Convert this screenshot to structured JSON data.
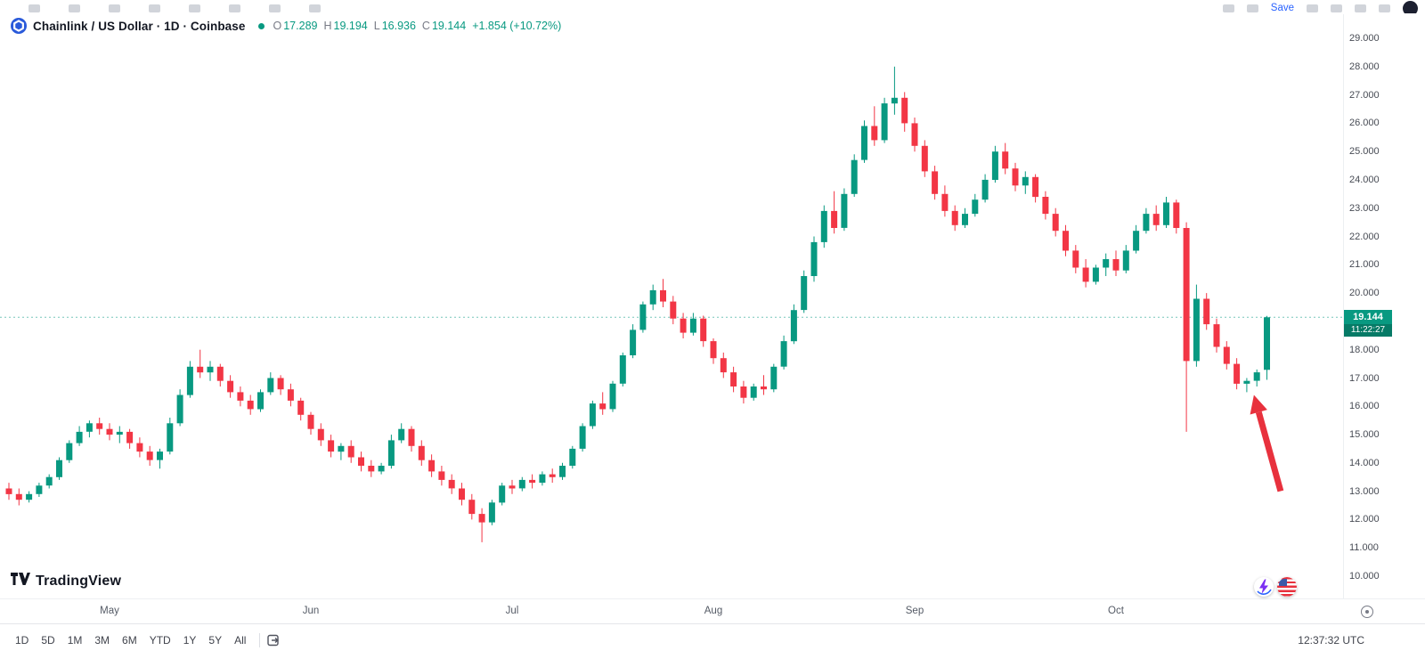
{
  "top_bar": {
    "save_label": "Save",
    "left_icons": [
      "symbol-search-icon",
      "compare-icon",
      "interval-menu-icon",
      "bar-style-icon",
      "indicators-icon",
      "indicator-templates-icon",
      "alerts-icon",
      "replay-icon"
    ],
    "right_icons_a": [
      "undo-icon",
      "redo-icon"
    ],
    "right_icons_b": [
      "multichart-layout-icon",
      "zoom-in-icon",
      "zoom-out-icon",
      "snapshot-camera-icon"
    ]
  },
  "symbol_header": {
    "title": "Chainlink / US Dollar · 1D · Coinbase",
    "ohlc_items": [
      {
        "label": "O",
        "value": "17.289"
      },
      {
        "label": "H",
        "value": "19.194"
      },
      {
        "label": "L",
        "value": "16.936"
      },
      {
        "label": "C",
        "value": "19.144"
      }
    ],
    "change": "+1.854 (+10.72%)"
  },
  "price_scale": {
    "labels": [
      "29.000",
      "28.000",
      "27.000",
      "26.000",
      "25.000",
      "24.000",
      "23.000",
      "22.000",
      "21.000",
      "20.000",
      "19.000",
      "18.000",
      "17.000",
      "16.000",
      "15.000",
      "14.000",
      "13.000",
      "12.000",
      "11.000",
      "10.000"
    ],
    "last_price_label": "19.144",
    "countdown": "11:22:27"
  },
  "toolbar": {
    "ranges": [
      "1D",
      "5D",
      "1M",
      "3M",
      "6M",
      "YTD",
      "1Y",
      "5Y",
      "All"
    ],
    "time_utc": "12:37:32 UTC"
  },
  "watermark": {
    "text": "TradingView"
  },
  "icons": {
    "chainlink-logo": "blue circle with white hexagon",
    "market-status-dot": "teal dot",
    "time-axis-settings": "circled dot",
    "go-to-date": "box with right arrow",
    "lightning-badge": "purple bolt in white circle",
    "us-flag-badge": "red-white striped roundel with blue corner",
    "tradingview-logo": "black TV mark",
    "arrow-annotation": "red arrow pointing up-left"
  },
  "chart_data": {
    "type": "candlestick",
    "title": "Chainlink / US Dollar",
    "interval": "1D",
    "exchange": "Coinbase",
    "ohlc": {
      "open": 17.289,
      "high": 19.194,
      "low": 16.936,
      "close": 19.144,
      "change": 1.854,
      "change_pct": 10.72
    },
    "ylim": [
      10,
      29
    ],
    "y_tick_step": 1,
    "grid": false,
    "last_price": 19.144,
    "countdown": "11:22:27",
    "colors": {
      "up": "#089981",
      "down": "#f23645"
    },
    "months": [
      {
        "label": "May",
        "candle_index": 10
      },
      {
        "label": "Jun",
        "candle_index": 30
      },
      {
        "label": "Jul",
        "candle_index": 50
      },
      {
        "label": "Aug",
        "candle_index": 70
      },
      {
        "label": "Sep",
        "candle_index": 90
      },
      {
        "label": "Oct",
        "candle_index": 110
      }
    ],
    "annotation": {
      "type": "arrow-up-left",
      "color": "#e8313d",
      "tip_index": 123,
      "tip_price": 16.4
    },
    "candles": [
      [
        13.1,
        13.3,
        12.7,
        12.9
      ],
      [
        12.9,
        13.1,
        12.5,
        12.7
      ],
      [
        12.7,
        13.0,
        12.6,
        12.9
      ],
      [
        12.9,
        13.3,
        12.8,
        13.2
      ],
      [
        13.2,
        13.6,
        13.1,
        13.5
      ],
      [
        13.5,
        14.2,
        13.4,
        14.1
      ],
      [
        14.1,
        14.8,
        14.0,
        14.7
      ],
      [
        14.7,
        15.3,
        14.6,
        15.1
      ],
      [
        15.1,
        15.5,
        14.9,
        15.4
      ],
      [
        15.4,
        15.6,
        15.0,
        15.2
      ],
      [
        15.2,
        15.4,
        14.8,
        15.0
      ],
      [
        15.0,
        15.3,
        14.7,
        15.1
      ],
      [
        15.1,
        15.2,
        14.5,
        14.7
      ],
      [
        14.7,
        14.9,
        14.2,
        14.4
      ],
      [
        14.4,
        14.6,
        13.9,
        14.1
      ],
      [
        14.1,
        14.5,
        13.8,
        14.4
      ],
      [
        14.4,
        15.6,
        14.3,
        15.4
      ],
      [
        15.4,
        16.6,
        15.3,
        16.4
      ],
      [
        16.4,
        17.6,
        16.3,
        17.4
      ],
      [
        17.4,
        18.0,
        17.0,
        17.2
      ],
      [
        17.2,
        17.6,
        16.9,
        17.4
      ],
      [
        17.4,
        17.5,
        16.7,
        16.9
      ],
      [
        16.9,
        17.1,
        16.3,
        16.5
      ],
      [
        16.5,
        16.7,
        16.0,
        16.2
      ],
      [
        16.2,
        16.4,
        15.7,
        15.9
      ],
      [
        15.9,
        16.6,
        15.8,
        16.5
      ],
      [
        16.5,
        17.2,
        16.4,
        17.0
      ],
      [
        17.0,
        17.1,
        16.4,
        16.6
      ],
      [
        16.6,
        16.8,
        16.0,
        16.2
      ],
      [
        16.2,
        16.3,
        15.5,
        15.7
      ],
      [
        15.7,
        15.8,
        15.0,
        15.2
      ],
      [
        15.2,
        15.4,
        14.6,
        14.8
      ],
      [
        14.8,
        15.0,
        14.2,
        14.4
      ],
      [
        14.4,
        14.7,
        14.1,
        14.6
      ],
      [
        14.6,
        14.8,
        14.0,
        14.2
      ],
      [
        14.2,
        14.4,
        13.7,
        13.9
      ],
      [
        13.9,
        14.1,
        13.5,
        13.7
      ],
      [
        13.7,
        14.0,
        13.6,
        13.9
      ],
      [
        13.9,
        15.0,
        13.8,
        14.8
      ],
      [
        14.8,
        15.4,
        14.7,
        15.2
      ],
      [
        15.2,
        15.3,
        14.4,
        14.6
      ],
      [
        14.6,
        14.8,
        13.9,
        14.1
      ],
      [
        14.1,
        14.3,
        13.5,
        13.7
      ],
      [
        13.7,
        13.9,
        13.2,
        13.4
      ],
      [
        13.4,
        13.6,
        12.9,
        13.1
      ],
      [
        13.1,
        13.3,
        12.5,
        12.7
      ],
      [
        12.7,
        12.9,
        12.0,
        12.2
      ],
      [
        12.2,
        12.4,
        11.2,
        11.9
      ],
      [
        11.9,
        12.7,
        11.8,
        12.6
      ],
      [
        12.6,
        13.3,
        12.5,
        13.2
      ],
      [
        13.2,
        13.4,
        12.9,
        13.1
      ],
      [
        13.1,
        13.5,
        13.0,
        13.4
      ],
      [
        13.4,
        13.6,
        13.1,
        13.3
      ],
      [
        13.3,
        13.7,
        13.2,
        13.6
      ],
      [
        13.6,
        13.8,
        13.3,
        13.5
      ],
      [
        13.5,
        14.0,
        13.4,
        13.9
      ],
      [
        13.9,
        14.6,
        13.8,
        14.5
      ],
      [
        14.5,
        15.4,
        14.4,
        15.3
      ],
      [
        15.3,
        16.2,
        15.2,
        16.1
      ],
      [
        16.1,
        16.5,
        15.7,
        15.9
      ],
      [
        15.9,
        16.9,
        15.8,
        16.8
      ],
      [
        16.8,
        17.9,
        16.7,
        17.8
      ],
      [
        17.8,
        18.9,
        17.7,
        18.7
      ],
      [
        18.7,
        19.7,
        18.6,
        19.6
      ],
      [
        19.6,
        20.3,
        19.4,
        20.1
      ],
      [
        20.1,
        20.5,
        19.5,
        19.7
      ],
      [
        19.7,
        19.9,
        18.9,
        19.1
      ],
      [
        19.1,
        19.3,
        18.4,
        18.6
      ],
      [
        18.6,
        19.3,
        18.5,
        19.1
      ],
      [
        19.1,
        19.2,
        18.1,
        18.3
      ],
      [
        18.3,
        18.4,
        17.5,
        17.7
      ],
      [
        17.7,
        17.9,
        17.0,
        17.2
      ],
      [
        17.2,
        17.4,
        16.5,
        16.7
      ],
      [
        16.7,
        16.9,
        16.1,
        16.3
      ],
      [
        16.3,
        16.8,
        16.2,
        16.7
      ],
      [
        16.7,
        17.1,
        16.4,
        16.6
      ],
      [
        16.6,
        17.5,
        16.5,
        17.4
      ],
      [
        17.4,
        18.5,
        17.3,
        18.3
      ],
      [
        18.3,
        19.6,
        18.2,
        19.4
      ],
      [
        19.4,
        20.8,
        19.3,
        20.6
      ],
      [
        20.6,
        22.0,
        20.4,
        21.8
      ],
      [
        21.8,
        23.1,
        21.6,
        22.9
      ],
      [
        22.9,
        23.6,
        22.1,
        22.3
      ],
      [
        22.3,
        23.7,
        22.2,
        23.5
      ],
      [
        23.5,
        24.9,
        23.4,
        24.7
      ],
      [
        24.7,
        26.1,
        24.6,
        25.9
      ],
      [
        25.9,
        26.6,
        25.2,
        25.4
      ],
      [
        25.4,
        26.9,
        25.3,
        26.7
      ],
      [
        26.7,
        28.0,
        26.3,
        26.9
      ],
      [
        26.9,
        27.1,
        25.7,
        26.0
      ],
      [
        26.0,
        26.2,
        25.0,
        25.2
      ],
      [
        25.2,
        25.4,
        24.1,
        24.3
      ],
      [
        24.3,
        24.5,
        23.3,
        23.5
      ],
      [
        23.5,
        23.8,
        22.7,
        22.9
      ],
      [
        22.9,
        23.1,
        22.2,
        22.4
      ],
      [
        22.4,
        23.0,
        22.3,
        22.8
      ],
      [
        22.8,
        23.5,
        22.7,
        23.3
      ],
      [
        23.3,
        24.2,
        23.2,
        24.0
      ],
      [
        24.0,
        25.2,
        23.9,
        25.0
      ],
      [
        25.0,
        25.3,
        24.2,
        24.4
      ],
      [
        24.4,
        24.6,
        23.6,
        23.8
      ],
      [
        23.8,
        24.3,
        23.5,
        24.1
      ],
      [
        24.1,
        24.2,
        23.2,
        23.4
      ],
      [
        23.4,
        23.6,
        22.6,
        22.8
      ],
      [
        22.8,
        23.0,
        22.0,
        22.2
      ],
      [
        22.2,
        22.4,
        21.3,
        21.5
      ],
      [
        21.5,
        21.7,
        20.7,
        20.9
      ],
      [
        20.9,
        21.2,
        20.2,
        20.4
      ],
      [
        20.4,
        21.0,
        20.3,
        20.9
      ],
      [
        20.9,
        21.4,
        20.6,
        21.2
      ],
      [
        21.2,
        21.5,
        20.6,
        20.8
      ],
      [
        20.8,
        21.7,
        20.7,
        21.5
      ],
      [
        21.5,
        22.4,
        21.4,
        22.2
      ],
      [
        22.2,
        23.0,
        22.1,
        22.8
      ],
      [
        22.8,
        23.1,
        22.2,
        22.4
      ],
      [
        22.4,
        23.4,
        22.3,
        23.2
      ],
      [
        23.2,
        23.3,
        22.1,
        22.3
      ],
      [
        22.3,
        22.5,
        15.1,
        17.6
      ],
      [
        17.6,
        20.3,
        17.4,
        19.8
      ],
      [
        19.8,
        20.0,
        18.7,
        18.9
      ],
      [
        18.9,
        19.1,
        17.9,
        18.1
      ],
      [
        18.1,
        18.3,
        17.3,
        17.5
      ],
      [
        17.5,
        17.7,
        16.6,
        16.8
      ],
      [
        16.8,
        17.0,
        16.5,
        16.9
      ],
      [
        16.9,
        17.3,
        16.7,
        17.2
      ],
      [
        17.289,
        19.194,
        16.936,
        19.144
      ]
    ]
  }
}
